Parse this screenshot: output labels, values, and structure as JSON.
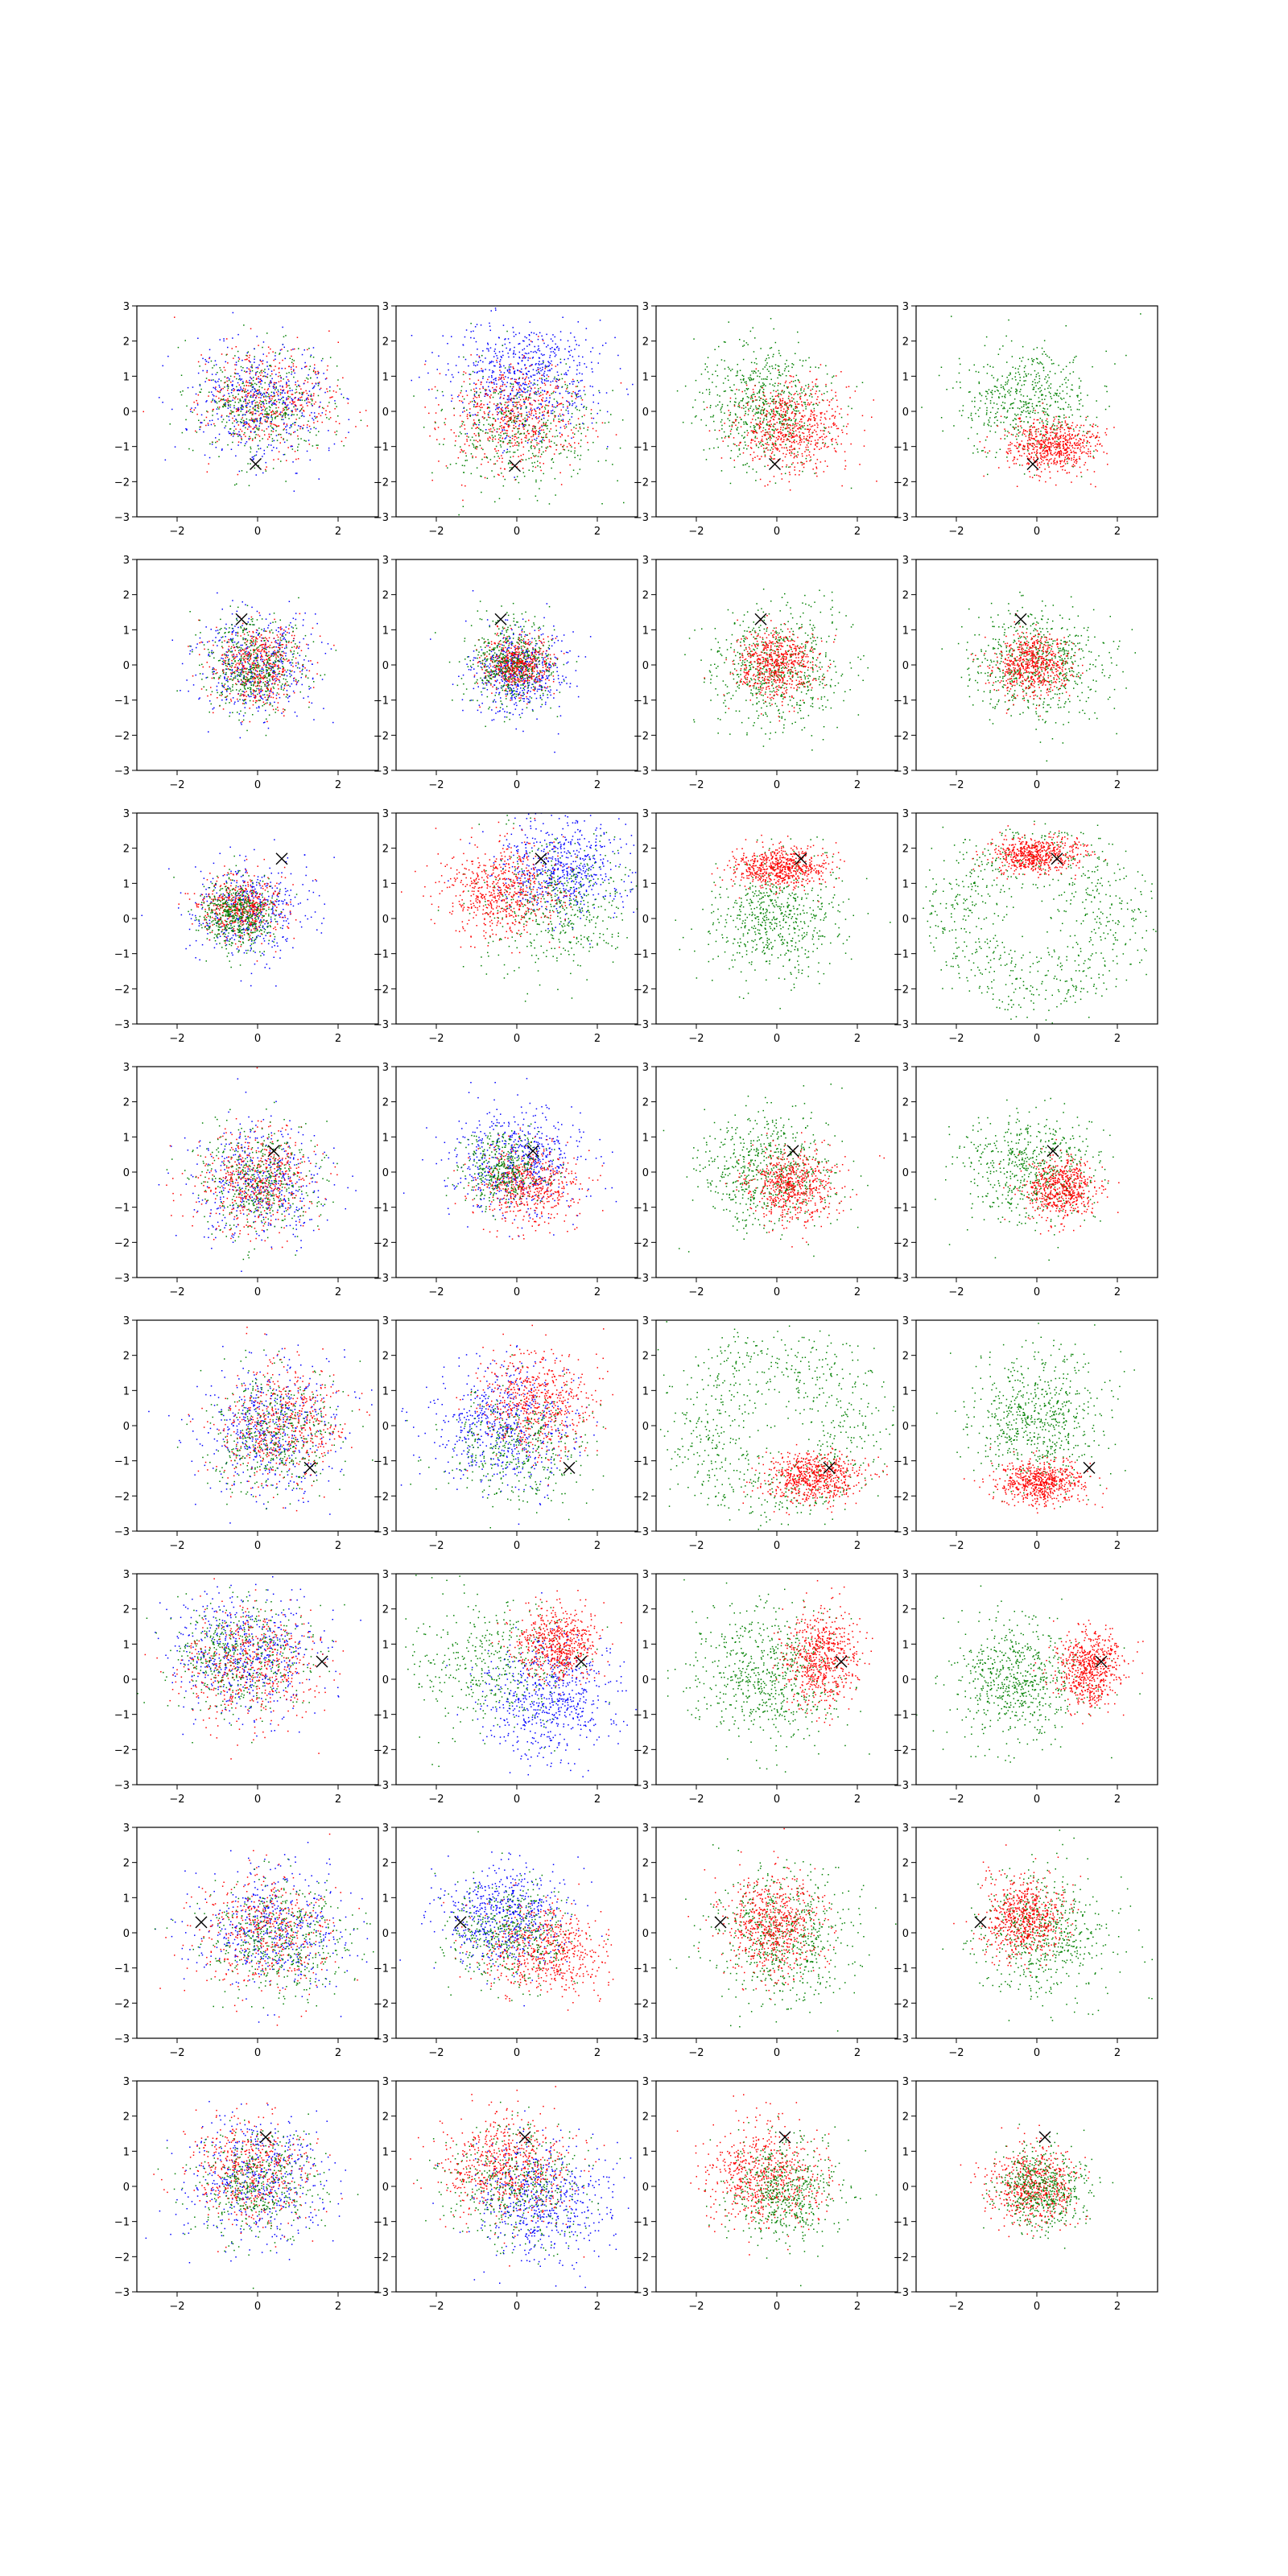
{
  "chart_data": {
    "type": "scatter",
    "grid": "off",
    "rows": 8,
    "cols": 4,
    "xlim": [
      -3,
      3
    ],
    "ylim": [
      -3,
      3
    ],
    "xticks": [
      -2,
      0,
      2
    ],
    "yticks": [
      -3,
      -2,
      -1,
      0,
      1,
      2,
      3
    ],
    "colors": {
      "red": "#ff0000",
      "green": "#008000",
      "blue": "#0000ff",
      "marker": "#000000"
    },
    "marker_symbol": "x",
    "panels": [
      {
        "row": 0,
        "col": 0,
        "marker": [
          -0.05,
          -1.5
        ],
        "clusters": [
          {
            "c": "red",
            "cx": 0.3,
            "cy": 0.3,
            "sx": 0.8,
            "sy": 0.75,
            "n": 500
          },
          {
            "c": "green",
            "cx": 0.1,
            "cy": 0.2,
            "sx": 0.85,
            "sy": 0.8,
            "n": 450
          },
          {
            "c": "blue",
            "cx": 0.1,
            "cy": 0.3,
            "sx": 0.9,
            "sy": 0.85,
            "n": 450
          }
        ]
      },
      {
        "row": 0,
        "col": 1,
        "marker": [
          -0.05,
          -1.55
        ],
        "clusters": [
          {
            "c": "blue",
            "cx": 0.2,
            "cy": 1.0,
            "sx": 0.95,
            "sy": 0.8,
            "n": 650
          },
          {
            "c": "red",
            "cx": 0.0,
            "cy": -0.2,
            "sx": 0.85,
            "sy": 0.75,
            "n": 600
          },
          {
            "c": "green",
            "cx": 0.0,
            "cy": -0.5,
            "sx": 1.1,
            "sy": 0.9,
            "n": 450
          }
        ]
      },
      {
        "row": 0,
        "col": 2,
        "marker": [
          -0.05,
          -1.5
        ],
        "clusters": [
          {
            "c": "green",
            "cx": -0.3,
            "cy": 0.2,
            "sx": 0.8,
            "sy": 0.85,
            "n": 650
          },
          {
            "c": "red",
            "cx": 0.35,
            "cy": -0.45,
            "sx": 0.7,
            "sy": 0.65,
            "n": 650
          }
        ]
      },
      {
        "row": 0,
        "col": 3,
        "marker": [
          -0.1,
          -1.5
        ],
        "clusters": [
          {
            "c": "green",
            "cx": -0.2,
            "cy": 0.3,
            "sx": 0.85,
            "sy": 0.8,
            "n": 550
          },
          {
            "c": "red",
            "cx": 0.4,
            "cy": -1.0,
            "sx": 0.55,
            "sy": 0.38,
            "n": 650
          }
        ]
      },
      {
        "row": 1,
        "col": 0,
        "marker": [
          -0.4,
          1.3
        ],
        "clusters": [
          {
            "c": "blue",
            "cx": 0.0,
            "cy": 0.0,
            "sx": 0.75,
            "sy": 0.75,
            "n": 450
          },
          {
            "c": "red",
            "cx": 0.0,
            "cy": 0.0,
            "sx": 0.6,
            "sy": 0.6,
            "n": 500
          },
          {
            "c": "green",
            "cx": -0.1,
            "cy": 0.0,
            "sx": 0.6,
            "sy": 0.65,
            "n": 500
          }
        ]
      },
      {
        "row": 1,
        "col": 1,
        "marker": [
          -0.4,
          1.3
        ],
        "clusters": [
          {
            "c": "blue",
            "cx": 0.0,
            "cy": -0.2,
            "sx": 0.6,
            "sy": 0.6,
            "n": 550
          },
          {
            "c": "red",
            "cx": 0.0,
            "cy": 0.0,
            "sx": 0.4,
            "sy": 0.4,
            "n": 550
          },
          {
            "c": "green",
            "cx": -0.1,
            "cy": 0.0,
            "sx": 0.55,
            "sy": 0.6,
            "n": 500
          }
        ]
      },
      {
        "row": 1,
        "col": 2,
        "marker": [
          -0.4,
          1.3
        ],
        "clusters": [
          {
            "c": "green",
            "cx": 0.0,
            "cy": 0.0,
            "sx": 0.85,
            "sy": 0.85,
            "n": 650
          },
          {
            "c": "red",
            "cx": 0.0,
            "cy": 0.0,
            "sx": 0.5,
            "sy": 0.5,
            "n": 600
          }
        ]
      },
      {
        "row": 1,
        "col": 3,
        "marker": [
          -0.4,
          1.3
        ],
        "clusters": [
          {
            "c": "green",
            "cx": 0.0,
            "cy": 0.0,
            "sx": 0.85,
            "sy": 0.8,
            "n": 650
          },
          {
            "c": "red",
            "cx": -0.1,
            "cy": 0.0,
            "sx": 0.45,
            "sy": 0.45,
            "n": 600
          }
        ]
      },
      {
        "row": 2,
        "col": 0,
        "marker": [
          0.6,
          1.7
        ],
        "clusters": [
          {
            "c": "blue",
            "cx": -0.3,
            "cy": 0.2,
            "sx": 0.75,
            "sy": 0.7,
            "n": 450
          },
          {
            "c": "red",
            "cx": -0.4,
            "cy": 0.3,
            "sx": 0.5,
            "sy": 0.45,
            "n": 500
          },
          {
            "c": "green",
            "cx": -0.5,
            "cy": 0.1,
            "sx": 0.45,
            "sy": 0.5,
            "n": 550
          }
        ]
      },
      {
        "row": 2,
        "col": 1,
        "marker": [
          0.6,
          1.7
        ],
        "clusters": [
          {
            "c": "blue",
            "cx": 1.2,
            "cy": 1.4,
            "sx": 0.8,
            "sy": 0.7,
            "n": 600
          },
          {
            "c": "green",
            "cx": 1.0,
            "cy": 0.3,
            "sx": 0.9,
            "sy": 0.9,
            "n": 500
          },
          {
            "c": "red",
            "cx": -0.4,
            "cy": 0.8,
            "sx": 0.75,
            "sy": 0.65,
            "n": 650
          }
        ]
      },
      {
        "row": 2,
        "col": 2,
        "marker": [
          0.6,
          1.7
        ],
        "clusters": [
          {
            "c": "green",
            "cx": 0.0,
            "cy": 0.0,
            "sx": 0.85,
            "sy": 0.8,
            "n": 600
          },
          {
            "c": "red",
            "cx": 0.1,
            "cy": 1.45,
            "sx": 0.6,
            "sy": 0.28,
            "n": 650
          }
        ]
      },
      {
        "row": 2,
        "col": 3,
        "marker": [
          0.5,
          1.7
        ],
        "clusters": [
          {
            "c": "green",
            "cx": 0.0,
            "cy": 0.0,
            "ring": 2.0,
            "rs": 0.55,
            "n": 750
          },
          {
            "c": "red",
            "cx": 0.0,
            "cy": 1.8,
            "sx": 0.55,
            "sy": 0.25,
            "n": 600
          }
        ]
      },
      {
        "row": 3,
        "col": 0,
        "marker": [
          0.4,
          0.6
        ],
        "clusters": [
          {
            "c": "blue",
            "cx": 0.0,
            "cy": -0.2,
            "sx": 0.85,
            "sy": 0.8,
            "n": 450
          },
          {
            "c": "red",
            "cx": 0.0,
            "cy": -0.3,
            "sx": 0.7,
            "sy": 0.7,
            "n": 550
          },
          {
            "c": "green",
            "cx": 0.0,
            "cy": -0.2,
            "sx": 0.75,
            "sy": 0.8,
            "n": 450
          }
        ]
      },
      {
        "row": 3,
        "col": 1,
        "marker": [
          0.4,
          0.6
        ],
        "clusters": [
          {
            "c": "blue",
            "cx": 0.0,
            "cy": 0.3,
            "sx": 0.8,
            "sy": 0.75,
            "n": 600
          },
          {
            "c": "red",
            "cx": 0.3,
            "cy": -0.4,
            "sx": 0.65,
            "sy": 0.55,
            "n": 550
          },
          {
            "c": "green",
            "cx": -0.3,
            "cy": 0.1,
            "sx": 0.5,
            "sy": 0.5,
            "n": 400
          }
        ]
      },
      {
        "row": 3,
        "col": 2,
        "marker": [
          0.4,
          0.6
        ],
        "clusters": [
          {
            "c": "green",
            "cx": -0.2,
            "cy": 0.1,
            "sx": 0.85,
            "sy": 0.85,
            "n": 650
          },
          {
            "c": "red",
            "cx": 0.45,
            "cy": -0.4,
            "sx": 0.55,
            "sy": 0.55,
            "n": 600
          }
        ]
      },
      {
        "row": 3,
        "col": 3,
        "marker": [
          0.4,
          0.6
        ],
        "clusters": [
          {
            "c": "green",
            "cx": -0.2,
            "cy": 0.1,
            "sx": 0.8,
            "sy": 0.8,
            "n": 600
          },
          {
            "c": "red",
            "cx": 0.6,
            "cy": -0.5,
            "sx": 0.45,
            "sy": 0.45,
            "n": 600
          }
        ]
      },
      {
        "row": 4,
        "col": 0,
        "marker": [
          1.3,
          -1.2
        ],
        "clusters": [
          {
            "c": "blue",
            "cx": 0.3,
            "cy": -0.1,
            "sx": 0.9,
            "sy": 0.95,
            "n": 500
          },
          {
            "c": "red",
            "cx": 0.6,
            "cy": 0.0,
            "sx": 0.75,
            "sy": 0.85,
            "n": 550
          },
          {
            "c": "green",
            "cx": 0.4,
            "cy": -0.2,
            "sx": 0.85,
            "sy": 0.9,
            "n": 450
          }
        ]
      },
      {
        "row": 4,
        "col": 1,
        "marker": [
          1.3,
          -1.2
        ],
        "clusters": [
          {
            "c": "blue",
            "cx": -0.3,
            "cy": 0.0,
            "sx": 0.95,
            "sy": 0.9,
            "n": 600
          },
          {
            "c": "red",
            "cx": 0.5,
            "cy": 0.6,
            "sx": 0.7,
            "sy": 0.7,
            "n": 600
          },
          {
            "c": "green",
            "cx": 0.0,
            "cy": -0.6,
            "sx": 0.9,
            "sy": 0.8,
            "n": 400
          }
        ]
      },
      {
        "row": 4,
        "col": 2,
        "marker": [
          1.3,
          -1.2
        ],
        "clusters": [
          {
            "c": "green",
            "cx": 0.0,
            "cy": 0.0,
            "ring": 1.9,
            "rs": 0.6,
            "n": 750
          },
          {
            "c": "red",
            "cx": 0.9,
            "cy": -1.5,
            "sx": 0.6,
            "sy": 0.35,
            "n": 650
          }
        ]
      },
      {
        "row": 4,
        "col": 3,
        "marker": [
          1.3,
          -1.2
        ],
        "clusters": [
          {
            "c": "green",
            "cx": 0.0,
            "cy": 0.2,
            "sx": 0.85,
            "sy": 0.9,
            "n": 650
          },
          {
            "c": "red",
            "cx": 0.1,
            "cy": -1.6,
            "sx": 0.55,
            "sy": 0.3,
            "n": 650
          }
        ]
      },
      {
        "row": 5,
        "col": 0,
        "marker": [
          1.6,
          0.5
        ],
        "clusters": [
          {
            "c": "blue",
            "cx": -0.3,
            "cy": 0.7,
            "sx": 0.95,
            "sy": 0.85,
            "n": 550
          },
          {
            "c": "green",
            "cx": -0.4,
            "cy": 0.6,
            "sx": 0.85,
            "sy": 0.8,
            "n": 500
          },
          {
            "c": "red",
            "cx": -0.2,
            "cy": 0.4,
            "sx": 0.85,
            "sy": 0.85,
            "n": 500
          }
        ]
      },
      {
        "row": 5,
        "col": 1,
        "marker": [
          1.6,
          0.5
        ],
        "clusters": [
          {
            "c": "green",
            "cx": -0.5,
            "cy": 0.4,
            "sx": 1.0,
            "sy": 0.9,
            "n": 450
          },
          {
            "c": "blue",
            "cx": 0.8,
            "cy": -0.6,
            "sx": 0.8,
            "sy": 0.85,
            "n": 600
          },
          {
            "c": "red",
            "cx": 1.0,
            "cy": 1.0,
            "sx": 0.5,
            "sy": 0.5,
            "n": 600
          }
        ]
      },
      {
        "row": 5,
        "col": 2,
        "marker": [
          1.6,
          0.5
        ],
        "clusters": [
          {
            "c": "green",
            "cx": -0.3,
            "cy": 0.0,
            "sx": 0.9,
            "sy": 0.95,
            "n": 650
          },
          {
            "c": "red",
            "cx": 1.1,
            "cy": 0.6,
            "sx": 0.45,
            "sy": 0.65,
            "n": 650
          }
        ]
      },
      {
        "row": 5,
        "col": 3,
        "marker": [
          1.6,
          0.5
        ],
        "clusters": [
          {
            "c": "green",
            "cx": -0.5,
            "cy": 0.0,
            "sx": 0.8,
            "sy": 0.85,
            "n": 650
          },
          {
            "c": "red",
            "cx": 1.3,
            "cy": 0.3,
            "sx": 0.4,
            "sy": 0.55,
            "n": 650
          }
        ]
      },
      {
        "row": 6,
        "col": 0,
        "marker": [
          -1.4,
          0.3
        ],
        "clusters": [
          {
            "c": "blue",
            "cx": 0.3,
            "cy": 0.1,
            "sx": 0.95,
            "sy": 0.85,
            "n": 500
          },
          {
            "c": "green",
            "cx": 0.5,
            "cy": -0.2,
            "sx": 0.9,
            "sy": 0.8,
            "n": 500
          },
          {
            "c": "red",
            "cx": 0.2,
            "cy": 0.0,
            "sx": 0.85,
            "sy": 0.8,
            "n": 450
          }
        ]
      },
      {
        "row": 6,
        "col": 1,
        "marker": [
          -1.4,
          0.3
        ],
        "clusters": [
          {
            "c": "blue",
            "cx": -0.3,
            "cy": 0.5,
            "sx": 0.8,
            "sy": 0.75,
            "n": 600
          },
          {
            "c": "red",
            "cx": 0.7,
            "cy": -0.5,
            "sx": 0.8,
            "sy": 0.6,
            "n": 600
          },
          {
            "c": "green",
            "cx": -0.2,
            "cy": 0.0,
            "sx": 0.75,
            "sy": 0.7,
            "n": 450
          }
        ]
      },
      {
        "row": 6,
        "col": 2,
        "marker": [
          -1.4,
          0.3
        ],
        "clusters": [
          {
            "c": "green",
            "cx": 0.1,
            "cy": -0.1,
            "sx": 0.85,
            "sy": 0.9,
            "n": 650
          },
          {
            "c": "red",
            "cx": -0.1,
            "cy": 0.2,
            "sx": 0.6,
            "sy": 0.75,
            "n": 650
          }
        ]
      },
      {
        "row": 6,
        "col": 3,
        "marker": [
          -1.4,
          0.3
        ],
        "clusters": [
          {
            "c": "green",
            "cx": 0.2,
            "cy": 0.0,
            "sx": 0.85,
            "sy": 0.9,
            "n": 600
          },
          {
            "c": "red",
            "cx": -0.3,
            "cy": 0.4,
            "sx": 0.5,
            "sy": 0.6,
            "n": 650
          }
        ]
      },
      {
        "row": 7,
        "col": 0,
        "marker": [
          0.2,
          1.4
        ],
        "clusters": [
          {
            "c": "blue",
            "cx": 0.0,
            "cy": 0.2,
            "sx": 0.85,
            "sy": 0.85,
            "n": 500
          },
          {
            "c": "red",
            "cx": -0.2,
            "cy": 0.4,
            "sx": 0.75,
            "sy": 0.75,
            "n": 500
          },
          {
            "c": "green",
            "cx": 0.0,
            "cy": 0.1,
            "sx": 0.75,
            "sy": 0.8,
            "n": 450
          }
        ]
      },
      {
        "row": 7,
        "col": 1,
        "marker": [
          0.2,
          1.4
        ],
        "clusters": [
          {
            "c": "blue",
            "cx": 0.6,
            "cy": -0.4,
            "sx": 0.85,
            "sy": 0.85,
            "n": 600
          },
          {
            "c": "red",
            "cx": -0.3,
            "cy": 0.6,
            "sx": 0.8,
            "sy": 0.75,
            "n": 650
          },
          {
            "c": "green",
            "cx": 0.0,
            "cy": 0.0,
            "sx": 0.9,
            "sy": 0.85,
            "n": 450
          }
        ]
      },
      {
        "row": 7,
        "col": 2,
        "marker": [
          0.2,
          1.4
        ],
        "clusters": [
          {
            "c": "red",
            "cx": -0.3,
            "cy": 0.3,
            "sx": 0.7,
            "sy": 0.75,
            "n": 650
          },
          {
            "c": "green",
            "cx": 0.2,
            "cy": -0.1,
            "sx": 0.7,
            "sy": 0.7,
            "n": 550
          }
        ]
      },
      {
        "row": 7,
        "col": 3,
        "marker": [
          0.2,
          1.4
        ],
        "clusters": [
          {
            "c": "red",
            "cx": -0.1,
            "cy": 0.0,
            "sx": 0.55,
            "sy": 0.6,
            "n": 600
          },
          {
            "c": "green",
            "cx": 0.1,
            "cy": -0.1,
            "sx": 0.55,
            "sy": 0.6,
            "n": 550
          }
        ]
      }
    ]
  }
}
